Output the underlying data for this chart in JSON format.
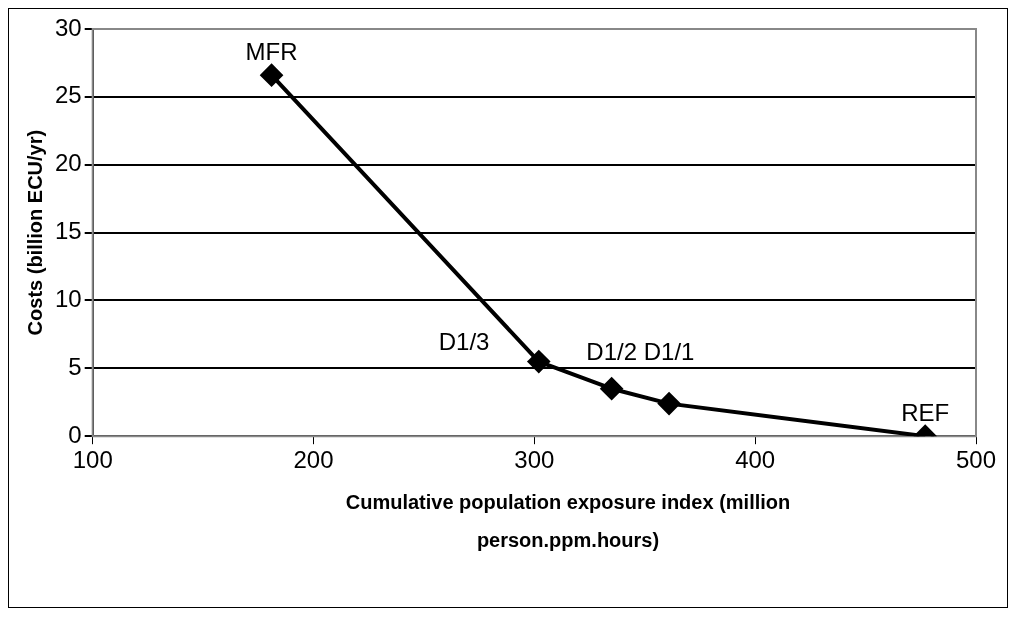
{
  "chart_data": {
    "type": "line",
    "xlabel": "Cumulative population exposure index (million person.ppm.hours)",
    "ylabel": "Costs (billion ECU/yr)",
    "x": [
      181,
      302,
      335,
      361,
      477
    ],
    "series": [
      {
        "color": "#000000",
        "values": [
          26.6,
          5.5,
          3.5,
          2.4,
          0
        ]
      }
    ],
    "xlim": [
      100,
      500
    ],
    "xticks": [
      100,
      200,
      300,
      400,
      500
    ],
    "ylim": [
      0,
      30
    ],
    "yticks": [
      0,
      5,
      10,
      15,
      20,
      25,
      30
    ],
    "grid": "y",
    "legend": false,
    "marker": "diamond",
    "line_style": "solid",
    "annotations": [
      {
        "text": "MFR",
        "x": 181,
        "y": 26.6
      },
      {
        "text": "D1/3",
        "x": 302,
        "y": 5.5
      },
      {
        "text": "D1/2",
        "x": 335,
        "y": 3.5
      },
      {
        "text": "D1/1",
        "x": 361,
        "y": 2.4
      },
      {
        "text": "REF",
        "x": 477,
        "y": 0
      }
    ]
  }
}
